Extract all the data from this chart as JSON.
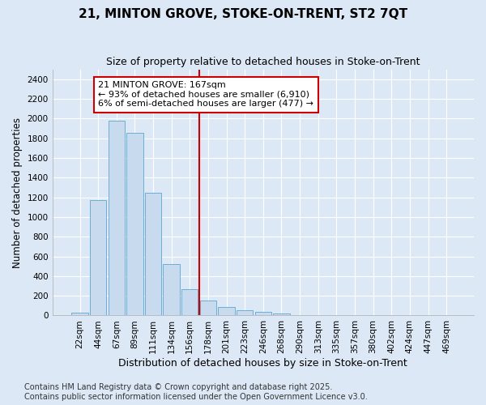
{
  "title": "21, MINTON GROVE, STOKE-ON-TRENT, ST2 7QT",
  "subtitle": "Size of property relative to detached houses in Stoke-on-Trent",
  "xlabel": "Distribution of detached houses by size in Stoke-on-Trent",
  "ylabel": "Number of detached properties",
  "bar_labels": [
    "22sqm",
    "44sqm",
    "67sqm",
    "89sqm",
    "111sqm",
    "134sqm",
    "156sqm",
    "178sqm",
    "201sqm",
    "223sqm",
    "246sqm",
    "268sqm",
    "290sqm",
    "313sqm",
    "335sqm",
    "357sqm",
    "380sqm",
    "402sqm",
    "424sqm",
    "447sqm",
    "469sqm"
  ],
  "bar_values": [
    30,
    1170,
    1980,
    1855,
    1250,
    520,
    270,
    150,
    90,
    55,
    40,
    18,
    0,
    0,
    0,
    0,
    0,
    0,
    0,
    0,
    0
  ],
  "bar_color": "#c8daee",
  "bar_edgecolor": "#6baed6",
  "vline_x": 6.5,
  "vline_color": "#cc0000",
  "annotation_text": "21 MINTON GROVE: 167sqm\n← 93% of detached houses are smaller (6,910)\n6% of semi-detached houses are larger (477) →",
  "annotation_box_facecolor": "#ffffff",
  "annotation_box_edgecolor": "#cc0000",
  "ylim": [
    0,
    2500
  ],
  "yticks": [
    0,
    200,
    400,
    600,
    800,
    1000,
    1200,
    1400,
    1600,
    1800,
    2000,
    2200,
    2400
  ],
  "bg_color": "#dce8f5",
  "plot_bg_color": "#dce8f5",
  "grid_color": "#ffffff",
  "footer_text": "Contains HM Land Registry data © Crown copyright and database right 2025.\nContains public sector information licensed under the Open Government Licence v3.0.",
  "title_fontsize": 11,
  "subtitle_fontsize": 9,
  "xlabel_fontsize": 9,
  "ylabel_fontsize": 8.5,
  "tick_fontsize": 7.5,
  "annotation_fontsize": 8,
  "footer_fontsize": 7
}
